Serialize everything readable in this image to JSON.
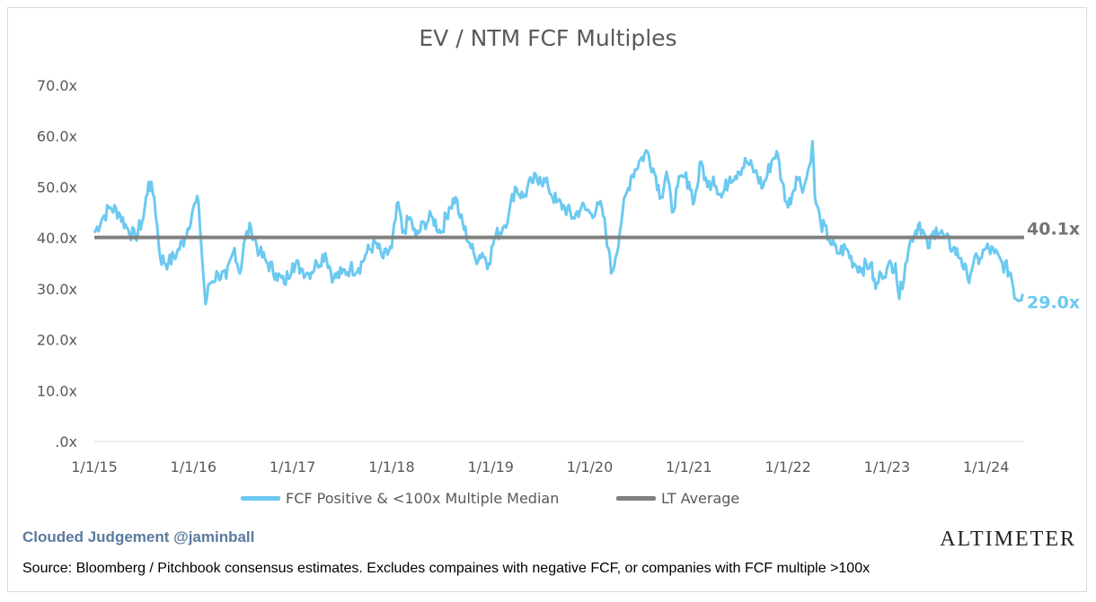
{
  "chart_data": {
    "type": "line",
    "title": "EV / NTM FCF Multiples",
    "xlabel": "",
    "ylabel": "",
    "ylim": [
      0,
      70
    ],
    "y_ticks": [
      ".0x",
      "10.0x",
      "20.0x",
      "30.0x",
      "40.0x",
      "50.0x",
      "60.0x",
      "70.0x"
    ],
    "x_ticks": [
      "1/1/15",
      "1/1/16",
      "1/1/17",
      "1/1/18",
      "1/1/19",
      "1/1/20",
      "1/1/21",
      "1/1/22",
      "1/1/23",
      "1/1/24"
    ],
    "x_range": [
      "2015-01-01",
      "2024-05-15"
    ],
    "grid": false,
    "legend_position": "bottom",
    "series": [
      {
        "name": "FCF Positive & <100x Multiple Median",
        "color": "#6cc9f0",
        "end_label": "29.0x",
        "points": [
          [
            "2015-01-01",
            41
          ],
          [
            "2015-02-01",
            44
          ],
          [
            "2015-03-01",
            46
          ],
          [
            "2015-04-01",
            45
          ],
          [
            "2015-05-01",
            42
          ],
          [
            "2015-06-01",
            40
          ],
          [
            "2015-07-01",
            44
          ],
          [
            "2015-07-20",
            51
          ],
          [
            "2015-08-10",
            48
          ],
          [
            "2015-09-01",
            36
          ],
          [
            "2015-10-01",
            35
          ],
          [
            "2015-11-01",
            37
          ],
          [
            "2015-12-01",
            40
          ],
          [
            "2016-01-01",
            46
          ],
          [
            "2016-01-20",
            47
          ],
          [
            "2016-02-05",
            34
          ],
          [
            "2016-02-15",
            27
          ],
          [
            "2016-03-01",
            31
          ],
          [
            "2016-04-01",
            33
          ],
          [
            "2016-05-01",
            32
          ],
          [
            "2016-06-01",
            38
          ],
          [
            "2016-06-20",
            33
          ],
          [
            "2016-07-10",
            40
          ],
          [
            "2016-08-01",
            42
          ],
          [
            "2016-09-01",
            37
          ],
          [
            "2016-10-01",
            35
          ],
          [
            "2016-11-01",
            33
          ],
          [
            "2016-12-01",
            31
          ],
          [
            "2017-01-01",
            35
          ],
          [
            "2017-02-01",
            34
          ],
          [
            "2017-03-01",
            33
          ],
          [
            "2017-04-01",
            35
          ],
          [
            "2017-05-01",
            37
          ],
          [
            "2017-06-01",
            32
          ],
          [
            "2017-07-01",
            33
          ],
          [
            "2017-08-01",
            34
          ],
          [
            "2017-09-01",
            34
          ],
          [
            "2017-10-01",
            37
          ],
          [
            "2017-11-01",
            39
          ],
          [
            "2017-12-01",
            36
          ],
          [
            "2018-01-01",
            38
          ],
          [
            "2018-01-25",
            47
          ],
          [
            "2018-02-10",
            41
          ],
          [
            "2018-03-10",
            44
          ],
          [
            "2018-04-01",
            40
          ],
          [
            "2018-05-01",
            43
          ],
          [
            "2018-06-01",
            44
          ],
          [
            "2018-07-01",
            41
          ],
          [
            "2018-08-01",
            46
          ],
          [
            "2018-08-25",
            48
          ],
          [
            "2018-09-10",
            44
          ],
          [
            "2018-10-15",
            39
          ],
          [
            "2018-11-05",
            36
          ],
          [
            "2018-12-01",
            37
          ],
          [
            "2018-12-25",
            35
          ],
          [
            "2019-01-15",
            40
          ],
          [
            "2019-02-15",
            42
          ],
          [
            "2019-03-10",
            45
          ],
          [
            "2019-04-01",
            50
          ],
          [
            "2019-05-01",
            48
          ],
          [
            "2019-06-01",
            51
          ],
          [
            "2019-07-01",
            52
          ],
          [
            "2019-08-01",
            50
          ],
          [
            "2019-09-01",
            47
          ],
          [
            "2019-10-01",
            46
          ],
          [
            "2019-11-01",
            44
          ],
          [
            "2019-12-01",
            46
          ],
          [
            "2020-01-01",
            45
          ],
          [
            "2020-02-15",
            46
          ],
          [
            "2020-03-10",
            38
          ],
          [
            "2020-03-20",
            33
          ],
          [
            "2020-04-05",
            36
          ],
          [
            "2020-05-01",
            45
          ],
          [
            "2020-06-01",
            52
          ],
          [
            "2020-07-01",
            55
          ],
          [
            "2020-08-01",
            57
          ],
          [
            "2020-09-01",
            52
          ],
          [
            "2020-09-20",
            48
          ],
          [
            "2020-10-10",
            53
          ],
          [
            "2020-10-31",
            45
          ],
          [
            "2020-11-20",
            50
          ],
          [
            "2020-12-10",
            52
          ],
          [
            "2021-01-01",
            51
          ],
          [
            "2021-01-20",
            47
          ],
          [
            "2021-02-15",
            55
          ],
          [
            "2021-03-10",
            50
          ],
          [
            "2021-04-01",
            52
          ],
          [
            "2021-05-01",
            48
          ],
          [
            "2021-06-01",
            52
          ],
          [
            "2021-07-01",
            53
          ],
          [
            "2021-08-01",
            55
          ],
          [
            "2021-09-01",
            53
          ],
          [
            "2021-10-01",
            50
          ],
          [
            "2021-11-01",
            55
          ],
          [
            "2021-11-20",
            57
          ],
          [
            "2021-12-10",
            51
          ],
          [
            "2022-01-01",
            46
          ],
          [
            "2022-02-01",
            52
          ],
          [
            "2022-03-01",
            50
          ],
          [
            "2022-03-20",
            54
          ],
          [
            "2022-04-01",
            59
          ],
          [
            "2022-04-10",
            48
          ],
          [
            "2022-05-01",
            43
          ],
          [
            "2022-06-01",
            40
          ],
          [
            "2022-07-01",
            37
          ],
          [
            "2022-08-01",
            38
          ],
          [
            "2022-09-01",
            35
          ],
          [
            "2022-10-01",
            34
          ],
          [
            "2022-11-01",
            35
          ],
          [
            "2022-11-20",
            30
          ],
          [
            "2022-12-10",
            33
          ],
          [
            "2023-01-01",
            34
          ],
          [
            "2023-02-01",
            35
          ],
          [
            "2023-02-15",
            28
          ],
          [
            "2023-03-10",
            35
          ],
          [
            "2023-04-01",
            40
          ],
          [
            "2023-05-01",
            43
          ],
          [
            "2023-06-01",
            38
          ],
          [
            "2023-07-01",
            42
          ],
          [
            "2023-08-01",
            40
          ],
          [
            "2023-09-01",
            38
          ],
          [
            "2023-10-01",
            36
          ],
          [
            "2023-10-25",
            32
          ],
          [
            "2023-11-15",
            35
          ],
          [
            "2023-12-10",
            36
          ],
          [
            "2024-01-01",
            38
          ],
          [
            "2024-02-01",
            37
          ],
          [
            "2024-03-01",
            35
          ],
          [
            "2024-04-01",
            33
          ],
          [
            "2024-04-20",
            28
          ],
          [
            "2024-05-15",
            29
          ]
        ]
      },
      {
        "name": "LT Average",
        "color": "#808080",
        "end_label": "40.1x",
        "value": 40.1
      }
    ]
  },
  "footer": {
    "branding": "Clouded Judgement @jaminball",
    "logo": "ALTIMETER",
    "source": "Source: Bloomberg / Pitchbook consensus estimates. Excludes compaines with negative FCF, or companies with FCF multiple >100x"
  }
}
